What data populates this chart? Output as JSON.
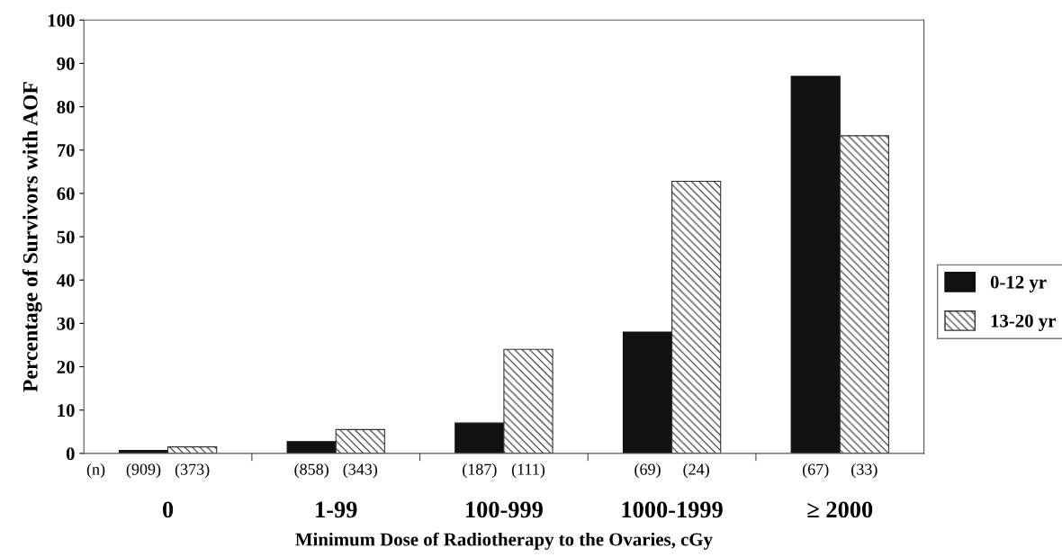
{
  "chart_data": {
    "type": "bar",
    "xlabel": "Minimum Dose of Radiotherapy to the Ovaries, cGy",
    "ylabel": "Percentage of Survivors with AOF",
    "categories": [
      "0",
      "1-99",
      "100-999",
      "1000-1999",
      "≥ 2000"
    ],
    "series": [
      {
        "name": "0-12 yr",
        "color": "#111111",
        "values": [
          0.7,
          2.7,
          7,
          28,
          87
        ]
      },
      {
        "name": "13-20 yr",
        "color": "#333333",
        "values": [
          1.5,
          5.5,
          24,
          62.8,
          73.3
        ]
      }
    ],
    "ylim": [
      0,
      100
    ],
    "yticks": [
      0,
      10,
      20,
      30,
      40,
      50,
      60,
      70,
      80,
      90,
      100
    ],
    "legend": "right",
    "grid": false,
    "annotations": [
      "(n)",
      "(909)",
      "(373)",
      "(858)",
      "(343)",
      "(187)",
      "(111)",
      "(69)",
      "(24)",
      "(67)",
      "(33)"
    ]
  }
}
